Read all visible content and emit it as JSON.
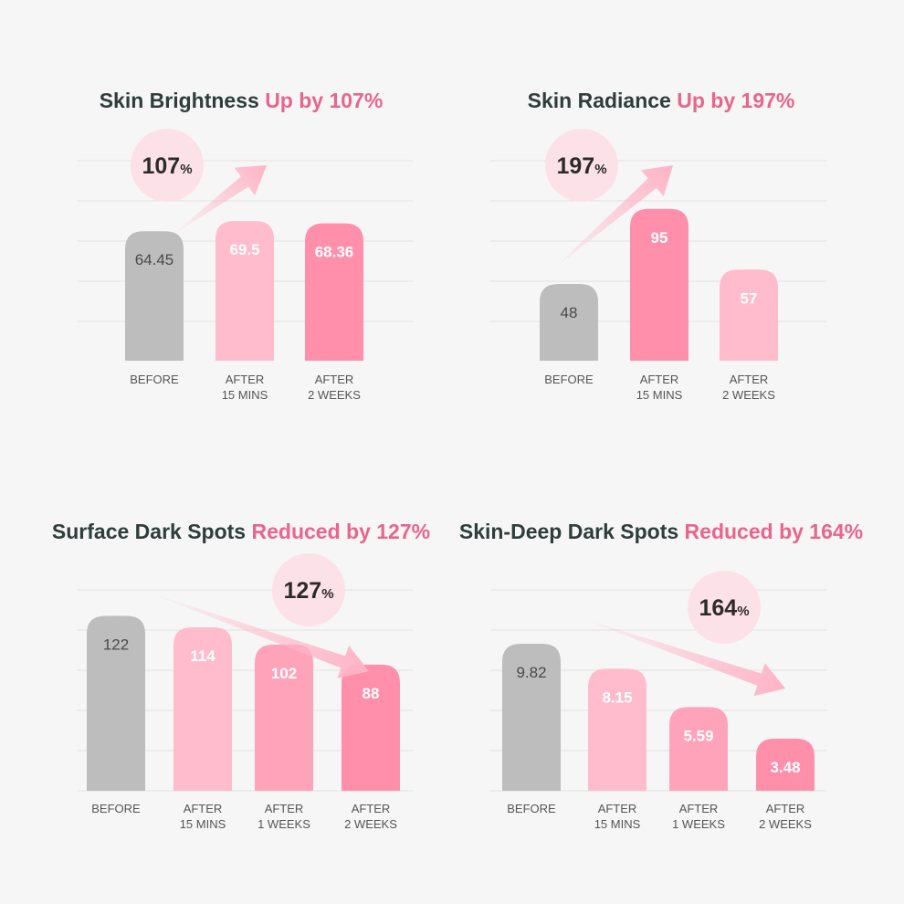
{
  "colors": {
    "background": "#f6f6f6",
    "gridline": "#e2e2e2",
    "before_bar": "#bdbdbd",
    "light_pink_bar": "#ffbccd",
    "pink_bar": "#ff8fab",
    "title_dark": "#2f3d3b",
    "title_pink": "#e8658d",
    "badge": "#fde1e8",
    "arrow": "#ffb3c6"
  },
  "chart_data": [
    {
      "type": "bar",
      "title_prefix": "Skin Brightness",
      "title_highlight": "Up by 107%",
      "badge_number": "107",
      "badge_unit": "%",
      "trend": "up",
      "categories": [
        [
          "BEFORE"
        ],
        [
          "AFTER",
          "15 MINS"
        ],
        [
          "AFTER",
          "2 WEEKS"
        ]
      ],
      "values": [
        64.45,
        69.5,
        68.36
      ],
      "value_labels": [
        "64.45",
        "69.5",
        "68.36"
      ],
      "bar_colors": [
        "#bdbdbd",
        "#ffbccd",
        "#ff8fab"
      ]
    },
    {
      "type": "bar",
      "title_prefix": "Skin Radiance",
      "title_highlight": "Up by 197%",
      "badge_number": "197",
      "badge_unit": "%",
      "trend": "up",
      "categories": [
        [
          "BEFORE"
        ],
        [
          "AFTER",
          "15 MINS"
        ],
        [
          "AFTER",
          "2 WEEKS"
        ]
      ],
      "values": [
        48,
        95,
        57
      ],
      "value_labels": [
        "48",
        "95",
        "57"
      ],
      "bar_colors": [
        "#bdbdbd",
        "#ff8fab",
        "#ffbccd"
      ]
    },
    {
      "type": "bar",
      "title_prefix": "Surface Dark Spots",
      "title_highlight": "Reduced by 127%",
      "badge_number": "127",
      "badge_unit": "%",
      "trend": "down",
      "categories": [
        [
          "BEFORE"
        ],
        [
          "AFTER",
          "15 MINS"
        ],
        [
          "AFTER",
          "1 WEEKS"
        ],
        [
          "AFTER",
          "2 WEEKS"
        ]
      ],
      "values": [
        122,
        114,
        102,
        88
      ],
      "value_labels": [
        "122",
        "114",
        "102",
        "88"
      ],
      "bar_colors": [
        "#bdbdbd",
        "#ffbccd",
        "#ffa3bb",
        "#ff8fab"
      ]
    },
    {
      "type": "bar",
      "title_prefix": "Skin-Deep Dark Spots",
      "title_highlight": "Reduced by 164%",
      "badge_number": "164",
      "badge_unit": "%",
      "trend": "down",
      "categories": [
        [
          "BEFORE"
        ],
        [
          "AFTER",
          "15 MINS"
        ],
        [
          "AFTER",
          "1 WEEKS"
        ],
        [
          "AFTER",
          "2 WEEKS"
        ]
      ],
      "values": [
        9.82,
        8.15,
        5.59,
        3.48
      ],
      "value_labels": [
        "9.82",
        "8.15",
        "5.59",
        "3.48"
      ],
      "bar_colors": [
        "#bdbdbd",
        "#ffbccd",
        "#ffa3bb",
        "#ff8fab"
      ]
    }
  ]
}
